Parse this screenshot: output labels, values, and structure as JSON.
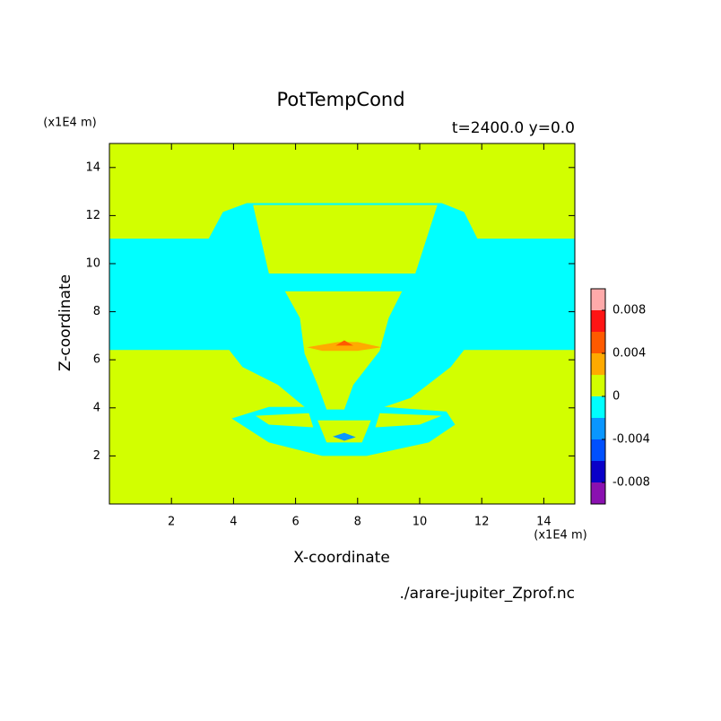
{
  "chart_data": {
    "type": "contour",
    "title": "PotTempCond",
    "subtitle": "t=2400.0 y=0.0",
    "xlabel": "X-coordinate",
    "ylabel": "Z-coordinate",
    "x_unit": "(x1E4 m)",
    "y_unit": "(x1E4 m)",
    "source": "./arare-jupiter_Zprof.nc",
    "xlim": [
      0,
      15
    ],
    "ylim": [
      0,
      15
    ],
    "xticks": [
      2,
      4,
      6,
      8,
      10,
      12,
      14
    ],
    "yticks": [
      2,
      4,
      6,
      8,
      10,
      12,
      14
    ],
    "colorbar": {
      "levels": [
        -0.01,
        -0.008,
        -0.006,
        -0.004,
        -0.002,
        0,
        0.002,
        0.004,
        0.006,
        0.008,
        0.01
      ],
      "colors": [
        "#8a10b0",
        "#0a00c8",
        "#0050ff",
        "#0a96ff",
        "#00ffff",
        "#d2ff00",
        "#ffaa00",
        "#ff5a00",
        "#ff1414",
        "#ffaaaa"
      ],
      "ticks": [
        -0.008,
        -0.004,
        0,
        0.004,
        0.008
      ]
    },
    "regions": [
      {
        "level": 0,
        "x": [
          0,
          15,
          15,
          0
        ],
        "z": [
          0,
          0,
          15,
          15
        ]
      },
      {
        "level": -0.002,
        "x": [
          0,
          3.2,
          3.66,
          4.43,
          10.71,
          11.43,
          11.86,
          15,
          15,
          11.43,
          11,
          9.71,
          8.86,
          10.86,
          11.14,
          10.29,
          8.29,
          6.86,
          5.14,
          3.94,
          5.14,
          6.29,
          5.43,
          4.29,
          3.86,
          0
        ],
        "z": [
          11.04,
          11.04,
          12.15,
          12.52,
          12.52,
          12.15,
          11.04,
          11.04,
          6.41,
          6.41,
          5.7,
          4.41,
          4.04,
          3.85,
          3.3,
          2.56,
          2.0,
          2.0,
          2.56,
          3.56,
          4.04,
          4.04,
          4.96,
          5.7,
          6.41,
          6.41
        ]
      },
      {
        "level": 0,
        "x": [
          4.63,
          10.57,
          9.86,
          5.14
        ],
        "z": [
          12.44,
          12.44,
          9.59,
          9.59
        ]
      },
      {
        "level": 0,
        "x": [
          5.66,
          9.43,
          9.0,
          8.71,
          7.86,
          7.57,
          7.0,
          6.71,
          6.29,
          6.14
        ],
        "z": [
          8.85,
          8.85,
          7.74,
          6.37,
          4.96,
          3.93,
          3.93,
          4.96,
          6.26,
          7.74
        ]
      },
      {
        "level": 0,
        "x": [
          4.71,
          6.43,
          6.57,
          5.14
        ],
        "z": [
          3.67,
          3.78,
          3.19,
          3.3
        ]
      },
      {
        "level": 0,
        "x": [
          8.71,
          10.71,
          10,
          8.57
        ],
        "z": [
          3.78,
          3.67,
          3.3,
          3.19
        ]
      },
      {
        "level": 0,
        "x": [
          6.71,
          8.43,
          8.14,
          7.0
        ],
        "z": [
          3.48,
          3.48,
          2.56,
          2.56
        ]
      },
      {
        "level": 0.002,
        "x": [
          6.37,
          7.37,
          8.0,
          8.77,
          8.0,
          6.86
        ],
        "z": [
          6.52,
          6.74,
          6.74,
          6.52,
          6.37,
          6.37
        ]
      },
      {
        "level": 0.004,
        "x": [
          7.29,
          7.57,
          7.86
        ],
        "z": [
          6.59,
          6.81,
          6.59
        ]
      },
      {
        "level": -0.004,
        "x": [
          7.2,
          7.57,
          7.94,
          7.57
        ],
        "z": [
          2.81,
          2.96,
          2.78,
          2.63
        ]
      }
    ]
  }
}
